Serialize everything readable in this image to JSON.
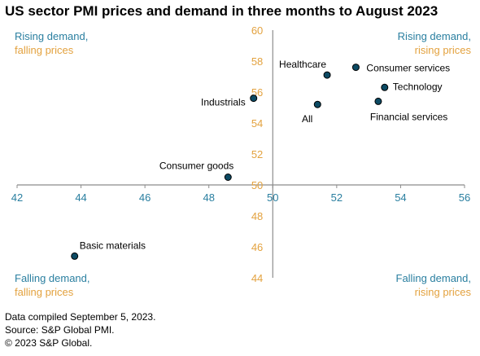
{
  "title": "US sector PMI prices and demand in three months to August 2023",
  "colors": {
    "demand_text": "#2a7fa0",
    "prices_text": "#e3a23f",
    "marker_fill": "#0c4a63",
    "axis": "#8c8c8c"
  },
  "quadrants": {
    "top_left": {
      "demand": "Rising demand,",
      "prices": "falling prices"
    },
    "top_right": {
      "demand": "Rising demand,",
      "prices": "rising prices"
    },
    "bottom_left": {
      "demand": "Falling demand,",
      "prices": "falling prices"
    },
    "bottom_right": {
      "demand": "Falling demand,",
      "prices": "rising prices"
    }
  },
  "footer": {
    "line1": "Data compiled September 5, 2023.",
    "line2": "Source: S&P Global PMI.",
    "line3": "© 2023 S&P Global."
  },
  "chart_data": {
    "type": "scatter",
    "title": "US sector PMI prices and demand in three months to August 2023",
    "xlabel": "",
    "ylabel": "",
    "xlim": [
      42,
      56
    ],
    "ylim": [
      44,
      60
    ],
    "x_ticks": [
      42,
      44,
      46,
      48,
      50,
      52,
      54,
      56
    ],
    "y_ticks": [
      44,
      46,
      48,
      50,
      52,
      54,
      56,
      58,
      60
    ],
    "axes_cross_at": {
      "x": 50,
      "y": 50
    },
    "grid": false,
    "points": [
      {
        "label": "Healthcare",
        "x": 51.7,
        "y": 57.1
      },
      {
        "label": "Consumer services",
        "x": 52.6,
        "y": 57.6
      },
      {
        "label": "Technology",
        "x": 53.5,
        "y": 56.3
      },
      {
        "label": "Industrials",
        "x": 49.4,
        "y": 55.6
      },
      {
        "label": "All",
        "x": 51.4,
        "y": 55.2
      },
      {
        "label": "Financial services",
        "x": 53.3,
        "y": 55.4
      },
      {
        "label": "Consumer goods",
        "x": 48.6,
        "y": 50.5
      },
      {
        "label": "Basic materials",
        "x": 43.8,
        "y": 45.4
      }
    ]
  }
}
